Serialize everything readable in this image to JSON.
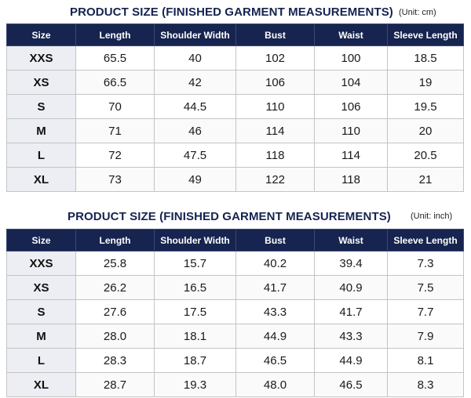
{
  "tables": [
    {
      "title": "PRODUCT SIZE  (FINISHED GARMENT MEASUREMENTS)",
      "unit": "(Unit: cm)",
      "headers": [
        "Size",
        "Length",
        "Shoulder Width",
        "Bust",
        "Waist",
        "Sleeve Length"
      ],
      "rows": [
        [
          "XXS",
          "65.5",
          "40",
          "102",
          "100",
          "18.5"
        ],
        [
          "XS",
          "66.5",
          "42",
          "106",
          "104",
          "19"
        ],
        [
          "S",
          "70",
          "44.5",
          "110",
          "106",
          "19.5"
        ],
        [
          "M",
          "71",
          "46",
          "114",
          "110",
          "20"
        ],
        [
          "L",
          "72",
          "47.5",
          "118",
          "114",
          "20.5"
        ],
        [
          "XL",
          "73",
          "49",
          "122",
          "118",
          "21"
        ]
      ]
    },
    {
      "title": "PRODUCT SIZE (FINISHED GARMENT MEASUREMENTS)",
      "unit": "(Unit: inch)",
      "headers": [
        "Size",
        "Length",
        "Shoulder Width",
        "Bust",
        "Waist",
        "Sleeve Length"
      ],
      "rows": [
        [
          "XXS",
          "25.8",
          "15.7",
          "40.2",
          "39.4",
          "7.3"
        ],
        [
          "XS",
          "26.2",
          "16.5",
          "41.7",
          "40.9",
          "7.5"
        ],
        [
          "S",
          "27.6",
          "17.5",
          "43.3",
          "41.7",
          "7.7"
        ],
        [
          "M",
          "28.0",
          "18.1",
          "44.9",
          "43.3",
          "7.9"
        ],
        [
          "L",
          "28.3",
          "18.7",
          "46.5",
          "44.9",
          "8.1"
        ],
        [
          "XL",
          "28.7",
          "19.3",
          "48.0",
          "46.5",
          "8.3"
        ]
      ]
    }
  ],
  "colors": {
    "header_bg": "#16244f",
    "title_text": "#15234f",
    "size_col_bg": "#eceef3"
  }
}
